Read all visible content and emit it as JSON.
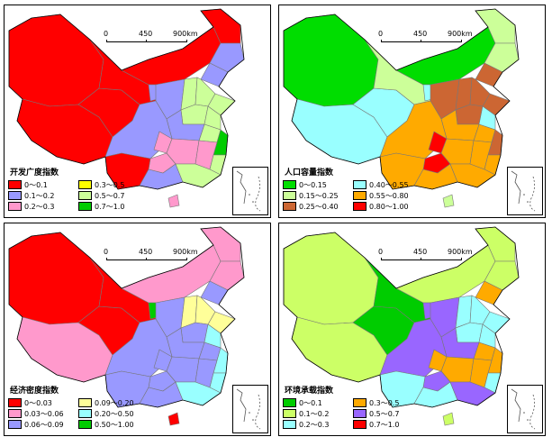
{
  "scale": {
    "labels": [
      "0",
      "450",
      "900km"
    ]
  },
  "panels": [
    {
      "title": "开发广度指数",
      "legend": [
        {
          "label": "0～0.1",
          "color": "#ff0000"
        },
        {
          "label": "0.3～0.5",
          "color": "#ffff00"
        },
        {
          "label": "0.1～0.2",
          "color": "#9999ff"
        },
        {
          "label": "0.5～0.7",
          "color": "#ccff99"
        },
        {
          "label": "0.2～0.3",
          "color": "#ff99cc"
        },
        {
          "label": "0.7～1.0",
          "color": "#00cc00"
        }
      ]
    },
    {
      "title": "人口容量指数",
      "legend": [
        {
          "label": "0～0.15",
          "color": "#00dd00"
        },
        {
          "label": "0.40～0.55",
          "color": "#99ffff"
        },
        {
          "label": "0.15～0.25",
          "color": "#ccff99"
        },
        {
          "label": "0.55～0.80",
          "color": "#ffaa00"
        },
        {
          "label": "0.25～0.40",
          "color": "#cc6633"
        },
        {
          "label": "0.80～1.00",
          "color": "#ff0000"
        }
      ]
    },
    {
      "title": "经济密度指数",
      "legend": [
        {
          "label": "0～0.03",
          "color": "#ff0000"
        },
        {
          "label": "0.09～0.20",
          "color": "#ffff99"
        },
        {
          "label": "0.03～0.06",
          "color": "#ff99cc"
        },
        {
          "label": "0.20～0.50",
          "color": "#99ffff"
        },
        {
          "label": "0.06～0.09",
          "color": "#9999ff"
        },
        {
          "label": "0.50～1.00",
          "color": "#00cc00"
        }
      ]
    },
    {
      "title": "环境承载指数",
      "legend": [
        {
          "label": "0～0.1",
          "color": "#00cc00"
        },
        {
          "label": "0.3～0.5",
          "color": "#ffaa00"
        },
        {
          "label": "0.1～0.2",
          "color": "#ccff66"
        },
        {
          "label": "0.5～0.7",
          "color": "#9966ff"
        },
        {
          "label": "0.2～0.3",
          "color": "#99ffff"
        },
        {
          "label": "0.7～1.0",
          "color": "#ff0000"
        }
      ]
    }
  ]
}
